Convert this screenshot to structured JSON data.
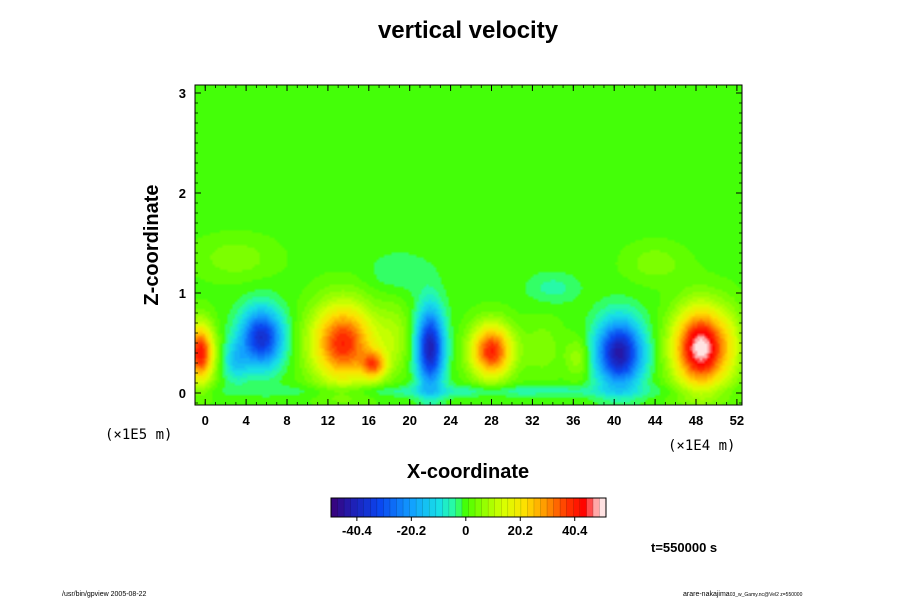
{
  "chart_data": {
    "type": "heatmap",
    "title": "vertical velocity",
    "xlabel": "X-coordinate",
    "ylabel": "Z-coordinate",
    "x_unit": "(×1E5 m)",
    "x_tick_unit": "(×1E4 m)",
    "xlim": [
      -1,
      52.5
    ],
    "ylim": [
      -0.12,
      3.08
    ],
    "x_ticks": [
      0,
      4,
      8,
      12,
      16,
      20,
      24,
      28,
      32,
      36,
      40,
      44,
      48,
      52
    ],
    "x_tick_labels": [
      "0",
      "4",
      "8",
      "12",
      "16",
      "20",
      "24",
      "28",
      "32",
      "36",
      "40",
      "44",
      "48",
      "52"
    ],
    "y_ticks": [
      0,
      1,
      2,
      3
    ],
    "y_tick_labels": [
      "0",
      "1",
      "2",
      "3"
    ],
    "background_value": 0,
    "cells": [
      {
        "x": -0.5,
        "z": 0.4,
        "value": 42,
        "sx": 1.3,
        "sz": 0.28
      },
      {
        "x": 3.0,
        "z": 0.32,
        "value": -12,
        "sx": 1.2,
        "sz": 0.2
      },
      {
        "x": 5.5,
        "z": 0.55,
        "value": -38,
        "sx": 2.0,
        "sz": 0.28
      },
      {
        "x": 13.5,
        "z": 0.5,
        "value": 40,
        "sx": 3.0,
        "sz": 0.38
      },
      {
        "x": 16.5,
        "z": 0.28,
        "value": 26,
        "sx": 1.2,
        "sz": 0.14
      },
      {
        "x": 18.5,
        "z": 0.55,
        "value": 8,
        "sx": 1.6,
        "sz": 0.35
      },
      {
        "x": 22.0,
        "z": 0.45,
        "value": -42,
        "sx": 1.3,
        "sz": 0.38
      },
      {
        "x": 28.0,
        "z": 0.42,
        "value": 40,
        "sx": 2.0,
        "sz": 0.26
      },
      {
        "x": 33.0,
        "z": 0.45,
        "value": 5,
        "sx": 2.0,
        "sz": 0.3
      },
      {
        "x": 36.5,
        "z": 0.35,
        "value": 8,
        "sx": 1.2,
        "sz": 0.2
      },
      {
        "x": 40.5,
        "z": 0.4,
        "value": -44,
        "sx": 2.2,
        "sz": 0.32
      },
      {
        "x": 48.5,
        "z": 0.45,
        "value": 52,
        "sx": 2.6,
        "sz": 0.38
      },
      {
        "x": 51.5,
        "z": 0.5,
        "value": 5,
        "sx": 1.2,
        "sz": 0.4
      },
      {
        "x": 3.0,
        "z": 1.35,
        "value": 5,
        "sx": 4.0,
        "sz": 0.22
      },
      {
        "x": 19.0,
        "z": 1.2,
        "value": -4,
        "sx": 3.0,
        "sz": 0.2
      },
      {
        "x": 34.0,
        "z": 1.05,
        "value": -5,
        "sx": 2.5,
        "sz": 0.15
      },
      {
        "x": 44.0,
        "z": 1.3,
        "value": 5,
        "sx": 3.0,
        "sz": 0.2
      },
      {
        "x": 26.0,
        "z": 0.02,
        "value": -6,
        "sx": 20.0,
        "sz": 0.06
      }
    ],
    "colorbar": {
      "min": -50,
      "max": 52,
      "ticks": [
        -40.4,
        -20.2,
        0,
        20.2,
        40.4
      ],
      "tick_labels": [
        "-40.4",
        "-20.2",
        "0",
        "20.2",
        "40.4"
      ],
      "color_stops": [
        {
          "v": -50,
          "color": "#3a0078"
        },
        {
          "v": -42,
          "color": "#1f1fb4"
        },
        {
          "v": -32,
          "color": "#0a46f0"
        },
        {
          "v": -20,
          "color": "#12a0ff"
        },
        {
          "v": -10,
          "color": "#18e0e6"
        },
        {
          "v": -4,
          "color": "#2aff9a"
        },
        {
          "v": 0,
          "color": "#46ff00"
        },
        {
          "v": 6,
          "color": "#8cff00"
        },
        {
          "v": 14,
          "color": "#d8ff00"
        },
        {
          "v": 22,
          "color": "#ffe000"
        },
        {
          "v": 30,
          "color": "#ff9400"
        },
        {
          "v": 38,
          "color": "#ff3200"
        },
        {
          "v": 44,
          "color": "#ff0000"
        },
        {
          "v": 48,
          "color": "#ffa0a0"
        },
        {
          "v": 52,
          "color": "#ffffff"
        }
      ]
    },
    "time_label": "t=550000 s"
  },
  "footer": {
    "left": "/usr/bin/gpview 2005-08-22",
    "right_main": "arare-nakajima",
    "right_small": "03_w_Gamy.nc@Vel2 z=550000"
  }
}
